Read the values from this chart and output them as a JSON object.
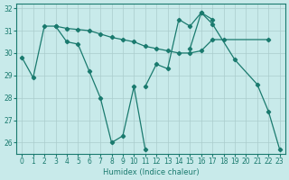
{
  "xlabel": "Humidex (Indice chaleur)",
  "bg_color": "#c8eaea",
  "grid_color": "#aacccc",
  "line_color": "#1a7a6e",
  "xlim": [
    -0.5,
    23.5
  ],
  "ylim": [
    25.5,
    32.2
  ],
  "xticks": [
    0,
    1,
    2,
    3,
    4,
    5,
    6,
    7,
    8,
    9,
    10,
    11,
    12,
    13,
    14,
    15,
    16,
    17,
    18,
    19,
    20,
    21,
    22,
    23
  ],
  "yticks": [
    26,
    27,
    28,
    29,
    30,
    31,
    32
  ],
  "series": [
    {
      "x": [
        0,
        1,
        2,
        3,
        4,
        5,
        6,
        7,
        8,
        9,
        10,
        11
      ],
      "y": [
        29.8,
        28.9,
        31.2,
        31.2,
        30.5,
        30.4,
        29.2,
        28.0,
        26.0,
        26.3,
        28.5,
        25.7
      ]
    },
    {
      "x": [
        3,
        4,
        5,
        6,
        7,
        8,
        9,
        10,
        11,
        12,
        13,
        14,
        15,
        16,
        17,
        18,
        22
      ],
      "y": [
        31.2,
        31.1,
        31.05,
        31.0,
        30.85,
        30.7,
        30.6,
        30.5,
        30.3,
        30.2,
        30.1,
        30.0,
        30.0,
        30.1,
        30.6,
        30.6,
        30.6
      ]
    },
    {
      "x": [
        11,
        12,
        13,
        14,
        15,
        16,
        17
      ],
      "y": [
        28.5,
        29.5,
        29.3,
        31.5,
        31.2,
        31.8,
        31.5
      ]
    },
    {
      "x": [
        15,
        16,
        17,
        19,
        21,
        22,
        23
      ],
      "y": [
        30.2,
        31.8,
        31.3,
        29.7,
        28.6,
        27.4,
        25.7
      ]
    }
  ]
}
